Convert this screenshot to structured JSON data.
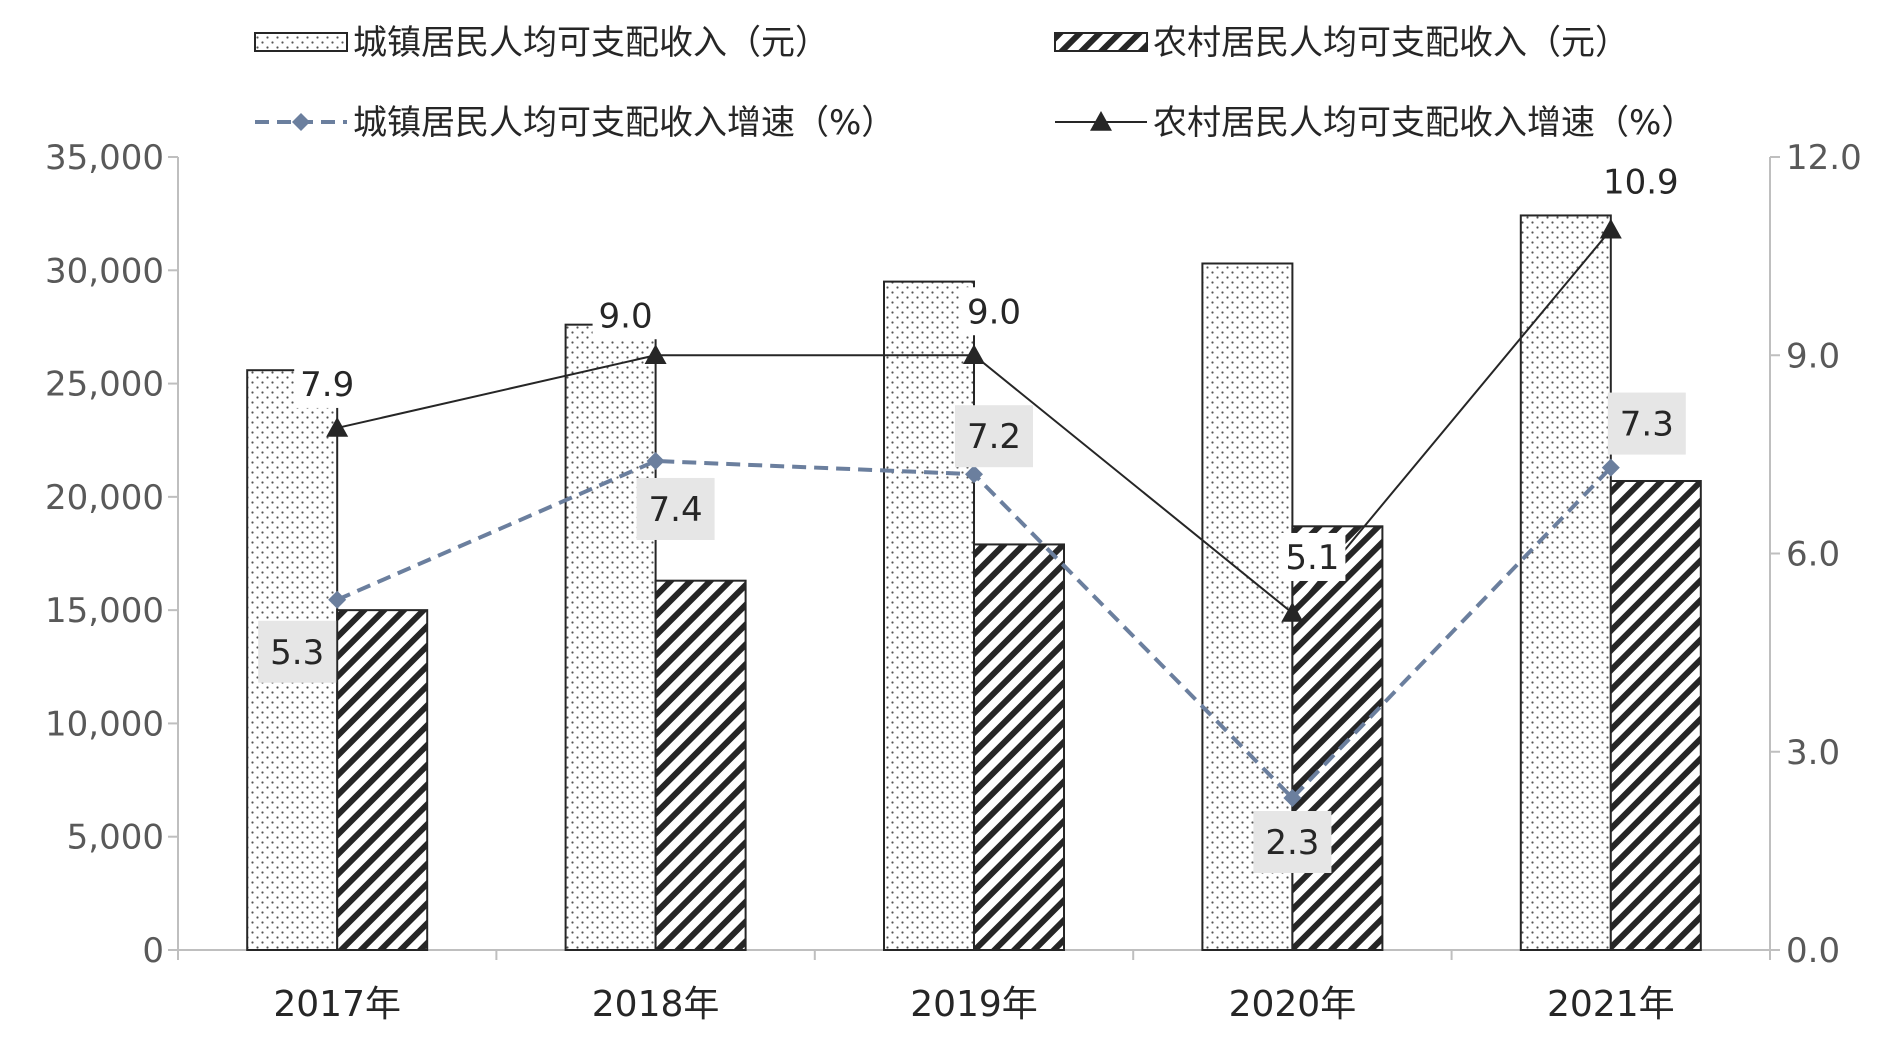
{
  "chart_data": {
    "type": "bar",
    "categories": [
      "2017年",
      "2018年",
      "2019年",
      "2020年",
      "2021年"
    ],
    "series": [
      {
        "name": "城镇居民人均可支配收入（元）",
        "kind": "bar",
        "axis": "left",
        "pattern": "dots",
        "values": [
          25590,
          27600,
          29500,
          30300,
          32420
        ]
      },
      {
        "name": "农村居民人均可支配收入（元）",
        "kind": "bar",
        "axis": "left",
        "pattern": "hatch",
        "values": [
          15000,
          16300,
          17900,
          18700,
          20700
        ]
      },
      {
        "name": "城镇居民人均可支配收入增速（%）",
        "kind": "line",
        "axis": "right",
        "line_style": "dashed",
        "marker": "diamond",
        "color": "#6b7f9e",
        "values": [
          5.3,
          7.4,
          7.2,
          2.3,
          7.3
        ],
        "labels": [
          "5.3",
          "7.4",
          "7.2",
          "2.3",
          "7.3"
        ],
        "label_boxed": true
      },
      {
        "name": "农村居民人均可支配收入增速（%）",
        "kind": "line",
        "axis": "right",
        "line_style": "solid",
        "marker": "triangle",
        "color": "#262626",
        "values": [
          7.9,
          9.0,
          9.0,
          5.1,
          10.9
        ],
        "labels": [
          "7.9",
          "9.0",
          "9.0",
          "5.1",
          "10.9"
        ],
        "label_boxed": false
      }
    ],
    "y_left": {
      "min": 0,
      "max": 35000,
      "ticks": [
        "0",
        "5,000",
        "10,000",
        "15,000",
        "20,000",
        "25,000",
        "30,000",
        "35,000"
      ]
    },
    "y_right": {
      "min": 0,
      "max": 12,
      "ticks": [
        "0.0",
        "3.0",
        "6.0",
        "9.0",
        "12.0"
      ]
    },
    "legend": {
      "placement": "top",
      "entries": [
        {
          "label": "城镇居民人均可支配收入（元）",
          "symbol": "dots-box"
        },
        {
          "label": "农村居民人均可支配收入（元）",
          "symbol": "hatch-box"
        },
        {
          "label": "城镇居民人均可支配收入增速（%）",
          "symbol": "dashed-diamond"
        },
        {
          "label": "农村居民人均可支配收入增速（%）",
          "symbol": "solid-triangle"
        }
      ]
    },
    "grid": false,
    "colors": {
      "axis": "#bfbfbf",
      "bar_outline": "#262626",
      "hatch": "#262626",
      "label_box": "#e6e6e6"
    }
  }
}
